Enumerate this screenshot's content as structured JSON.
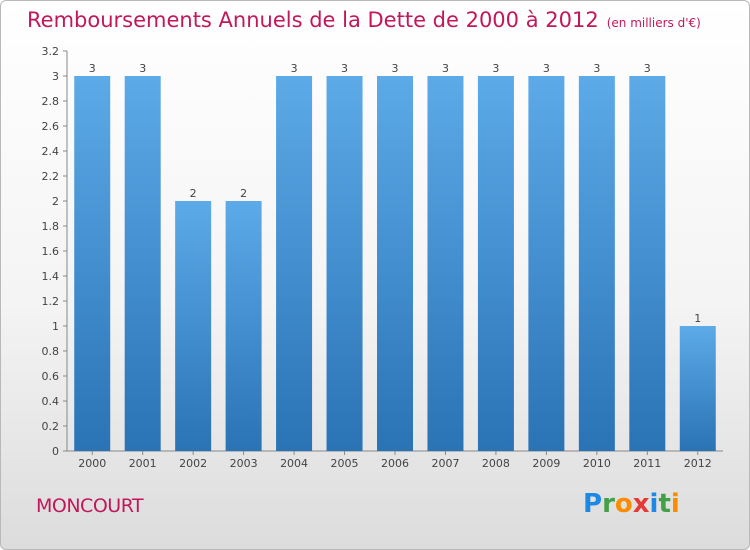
{
  "title": "Remboursements Annuels de la Dette de 2000 à 2012",
  "unit": "(en milliers d'€)",
  "town": "MONCOURT",
  "logo": {
    "letters": [
      "P",
      "r",
      "o",
      "x",
      "i",
      "t",
      "i"
    ],
    "colors": [
      "#1e88e5",
      "#43a047",
      "#fb8c00",
      "#e53935",
      "#1e88e5",
      "#43a047",
      "#fb8c00"
    ]
  },
  "colors": {
    "bar": "#3e8fd0",
    "bar_light": "#5daae8",
    "bar_dark": "#2a73b5",
    "title": "#c2185b"
  },
  "chart_data": {
    "type": "bar",
    "categories": [
      "2000",
      "2001",
      "2002",
      "2003",
      "2004",
      "2005",
      "2006",
      "2007",
      "2008",
      "2009",
      "2010",
      "2011",
      "2012"
    ],
    "values": [
      3,
      3,
      2,
      2,
      3,
      3,
      3,
      3,
      3,
      3,
      3,
      3,
      1
    ],
    "data_labels": [
      "3",
      "3",
      "2",
      "2",
      "3",
      "3",
      "3",
      "3",
      "3",
      "3",
      "3",
      "3",
      "1"
    ],
    "y_ticks": [
      "0",
      "0.2",
      "0.4",
      "0.6",
      "0.8",
      "1",
      "1.2",
      "1.4",
      "1.6",
      "1.8",
      "2",
      "2.2",
      "2.4",
      "2.6",
      "2.8",
      "3",
      "3.2"
    ],
    "ylim": [
      0,
      3.2
    ],
    "grid": false
  }
}
